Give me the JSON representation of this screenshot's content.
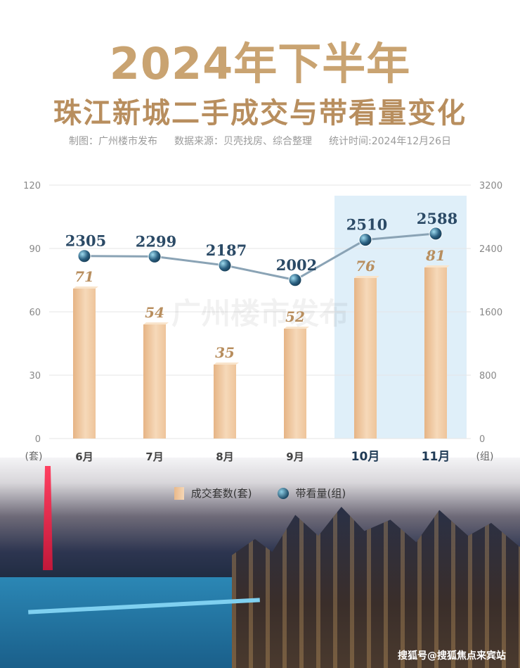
{
  "header": {
    "title_line1": "2024年下半年",
    "title_line2": "珠江新城二手成交与带看量变化",
    "meta_maker": "制图：广州楼市发布",
    "meta_source": "数据来源：贝壳找房、综合整理",
    "meta_date": "统计时间:2024年12月26日"
  },
  "chart_data": {
    "type": "bar",
    "categories": [
      "6月",
      "7月",
      "8月",
      "9月",
      "10月",
      "11月"
    ],
    "highlighted_categories": [
      "10月",
      "11月"
    ],
    "series": [
      {
        "name": "成交套数(套)",
        "type": "bar",
        "axis": "left",
        "values": [
          71,
          54,
          35,
          52,
          76,
          81
        ]
      },
      {
        "name": "带看量(组)",
        "type": "line",
        "axis": "right",
        "values": [
          2305,
          2299,
          2187,
          2002,
          2510,
          2588
        ]
      }
    ],
    "y_left": {
      "unit_label": "(套)",
      "ticks": [
        0,
        30,
        60,
        90,
        120
      ],
      "ylim": [
        0,
        120
      ]
    },
    "y_right": {
      "unit_label": "(组)",
      "ticks": [
        0,
        800,
        1600,
        2400,
        3200
      ],
      "ylim": [
        0,
        3200
      ]
    },
    "watermark_text": "广州楼市发布",
    "grid": true,
    "legend_position": "bottom"
  },
  "legend": {
    "bar_label": "成交套数(套)",
    "line_label": "带看量(组)"
  },
  "colors": {
    "bar": "#f0c89c",
    "line": "#8aa3b5",
    "marker": "#1d4a66",
    "highlight": "#d9ecf8",
    "bar_label": "#b88e5e",
    "line_label": "#2b4a66"
  },
  "footer": {
    "watermark": "搜狐号@搜狐焦点来宾站"
  }
}
